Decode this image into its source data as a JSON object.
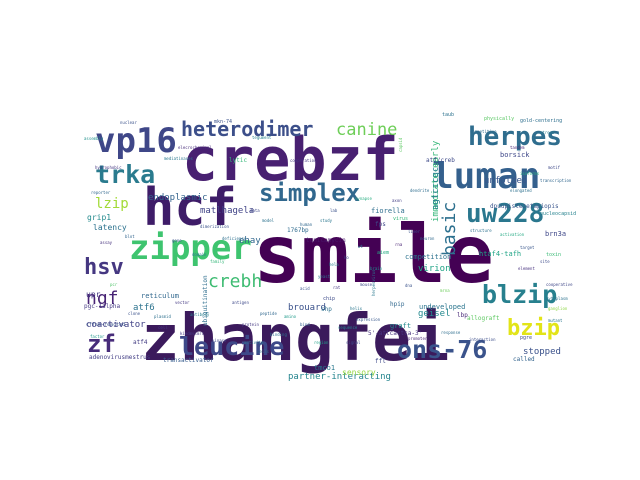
{
  "words": [
    {
      "text": "smile",
      "color": "#440154"
    },
    {
      "text": "zhangfei",
      "color": "#3b1a5c"
    },
    {
      "text": "crebzf",
      "color": "#482071"
    },
    {
      "text": "hcf",
      "color": "#3e1c68"
    },
    {
      "text": "luman",
      "color": "#34608d"
    },
    {
      "text": "zipper",
      "color": "#3ec46f"
    },
    {
      "text": "vp16",
      "color": "#3f4788"
    },
    {
      "text": "herpes",
      "color": "#2f6d8e"
    },
    {
      "text": "simplex",
      "color": "#31688e"
    },
    {
      "text": "uw228",
      "color": "#2a778e"
    },
    {
      "text": "trka",
      "color": "#2a7b8e"
    },
    {
      "text": "heterodimer",
      "color": "#3c4f8a"
    },
    {
      "text": "canine",
      "color": "#6ece58"
    },
    {
      "text": "leucine",
      "color": "#3e4989"
    },
    {
      "text": "ons-76",
      "color": "#3a538b"
    },
    {
      "text": "blzip",
      "color": "#27808e"
    },
    {
      "text": "bzip",
      "color": "#e2e418"
    },
    {
      "text": "hsv",
      "color": "#453781"
    },
    {
      "text": "zf",
      "color": "#472c7a"
    },
    {
      "text": "ngf",
      "color": "#482475"
    },
    {
      "text": "lzip",
      "color": "#a2da37"
    },
    {
      "text": "crebh",
      "color": "#3fbc73"
    },
    {
      "text": "basic",
      "color": "#2d708e"
    },
    {
      "text": "endoplasmic",
      "color": "#33638d"
    },
    {
      "text": "matlhagela",
      "color": "#414487"
    },
    {
      "text": "stopped",
      "color": "#3b528b"
    },
    {
      "text": "coactivator",
      "color": "#414287"
    },
    {
      "text": "partner-interacting",
      "color": "#25858e"
    },
    {
      "text": "geisel",
      "color": "#23898e"
    },
    {
      "text": "virion",
      "color": "#20a386"
    },
    {
      "text": "unfolded",
      "color": "#39568c"
    },
    {
      "text": "immediate-early",
      "color": "#35b779"
    },
    {
      "text": "agtcccgc",
      "color": "#26818e"
    },
    {
      "text": "brouard",
      "color": "#3b528b"
    },
    {
      "text": "atf6",
      "color": "#2c738e"
    },
    {
      "text": "ehay",
      "color": "#31678e"
    },
    {
      "text": "reticulum",
      "color": "#31688e"
    },
    {
      "text": "grip1",
      "color": "#238a8d"
    },
    {
      "text": "latency",
      "color": "#2c728e"
    },
    {
      "text": "upr",
      "color": "#453882"
    },
    {
      "text": "sensory",
      "color": "#93d741"
    },
    {
      "text": "borsick",
      "color": "#3f4889"
    },
    {
      "text": "undeveloped",
      "color": "#2b758e"
    },
    {
      "text": "competition",
      "color": "#2c728e"
    },
    {
      "text": "ubiquitination",
      "color": "#2e6e8e"
    },
    {
      "text": "transactivator",
      "color": "#365c8d"
    },
    {
      "text": "adenovirusmestrus",
      "color": "#433e85"
    },
    {
      "text": "fiorella",
      "color": "#2e6e8e"
    },
    {
      "text": "tunicamycin",
      "color": "#48186a"
    },
    {
      "text": "lytic",
      "color": "#35b779"
    },
    {
      "text": "fps",
      "color": "#3f4788"
    },
    {
      "text": "allograft",
      "color": "#5ec962"
    },
    {
      "text": "graft",
      "color": "#238a8d"
    },
    {
      "text": "lbp",
      "color": "#482878"
    },
    {
      "text": "called",
      "color": "#33638d"
    },
    {
      "text": "ffl",
      "color": "#3e4989"
    },
    {
      "text": "pgre",
      "color": "#3e4989"
    },
    {
      "text": "brn3a",
      "color": "#3f4889"
    },
    {
      "text": "htaf4-tafh",
      "color": "#20a486"
    },
    {
      "text": "tmco1",
      "color": "#2a788e"
    },
    {
      "text": "hpip",
      "color": "#31688e"
    },
    {
      "text": "shp",
      "color": "#2d708e"
    },
    {
      "text": "atf4",
      "color": "#433d84"
    },
    {
      "text": "chip",
      "color": "#3e4c8a"
    },
    {
      "text": "5'-attcactca-3'",
      "color": "#46337e"
    },
    {
      "text": "dpuupistezetapiopis",
      "color": "#39558c"
    },
    {
      "text": "nucleocapsid",
      "color": "#26828e"
    },
    {
      "text": "pgc-1alpha",
      "color": "#443983"
    },
    {
      "text": "1767bp",
      "color": "#2f6b8e"
    },
    {
      "text": "mkn-74",
      "color": "#3b528b"
    },
    {
      "text": "taub",
      "color": "#2c728e"
    },
    {
      "text": "atf/creb",
      "color": "#3e4a89"
    },
    {
      "text": "toxin",
      "color": "#3aba76"
    },
    {
      "text": "elecrochemical",
      "color": "#472c7a"
    },
    {
      "text": "physically",
      "color": "#5ac864"
    },
    {
      "text": "gold-centering",
      "color": "#2e6f8e"
    },
    {
      "text": "competitive",
      "color": "#2f6c8e"
    },
    {
      "text": "tandem",
      "color": "#482475"
    },
    {
      "text": "aiem",
      "color": "#25ac82"
    },
    {
      "text": "herpesvirus",
      "color": "#2a788e"
    },
    {
      "text": "cffsm-reacted",
      "color": "#3b528b"
    },
    {
      "text": "kiedmvsmrc",
      "color": "#443a83"
    },
    {
      "text": "mediatinases",
      "color": "#2a788e"
    },
    {
      "text": "virus",
      "color": "#35b779"
    },
    {
      "text": "elongated",
      "color": "#2d708e"
    },
    {
      "text": "hydrophobic",
      "color": "#453882"
    },
    {
      "text": "dimerization",
      "color": "#3b528b"
    },
    {
      "text": "isoforms",
      "color": "#29af7f"
    },
    {
      "text": "capsid",
      "color": "#5dc963"
    },
    {
      "text": "tegument",
      "color": "#26828e"
    },
    {
      "text": "deficiency",
      "color": "#2d708e"
    },
    {
      "text": "cooperative",
      "color": "#3f4788"
    },
    {
      "text": "assembly",
      "color": "#21918c"
    },
    {
      "text": "nuclear",
      "color": "#3b528b"
    },
    {
      "text": "cytoplasm",
      "color": "#2c728e"
    },
    {
      "text": "cooperation",
      "color": "#453781"
    },
    {
      "text": "ganglion",
      "color": "#8ed645"
    },
    {
      "text": "reporter",
      "color": "#31688e"
    },
    {
      "text": "mutant",
      "color": "#2a788e"
    },
    {
      "text": "stress",
      "color": "#287c8e"
    },
    {
      "text": "motif",
      "color": "#3e4989"
    },
    {
      "text": "element",
      "color": "#46307e"
    },
    {
      "text": "bind",
      "color": "#33638d"
    },
    {
      "text": "region",
      "color": "#1fa187"
    },
    {
      "text": "signal",
      "color": "#3f4788"
    },
    {
      "text": "cells",
      "color": "#2d708e"
    },
    {
      "text": "protein",
      "color": "#453882"
    },
    {
      "text": "factor",
      "color": "#1f968b"
    },
    {
      "text": "human",
      "color": "#31688e"
    },
    {
      "text": "gene",
      "color": "#3b528b"
    },
    {
      "text": "domain",
      "color": "#2a788e"
    },
    {
      "text": "family",
      "color": "#34b679"
    },
    {
      "text": "cell",
      "color": "#443a83"
    },
    {
      "text": "kinase",
      "color": "#3f4889"
    },
    {
      "text": "binding",
      "color": "#2c728e"
    },
    {
      "text": "activity",
      "color": "#2a788e"
    },
    {
      "text": "expression",
      "color": "#38588c"
    },
    {
      "text": "sequence",
      "color": "#25848e"
    },
    {
      "text": "promoter",
      "color": "#482576"
    },
    {
      "text": "response",
      "color": "#2e6e8e"
    },
    {
      "text": "interaction",
      "color": "#3d4e8a"
    },
    {
      "text": "transcription",
      "color": "#31678e"
    },
    {
      "text": "activation",
      "color": "#23a983"
    },
    {
      "text": "target",
      "color": "#39568c"
    },
    {
      "text": "site",
      "color": "#3e4c8a"
    },
    {
      "text": "structure",
      "color": "#2c718e"
    },
    {
      "text": "mrna",
      "color": "#6ccd5a"
    },
    {
      "text": "dna",
      "color": "#3b528b"
    },
    {
      "text": "rna",
      "color": "#482173"
    },
    {
      "text": "wt",
      "color": "#2d708e"
    },
    {
      "text": "ko",
      "color": "#3f4788"
    },
    {
      "text": "hela",
      "color": "#26818e"
    },
    {
      "text": "yeast",
      "color": "#2b758e"
    },
    {
      "text": "mouse",
      "color": "#3e4a89"
    },
    {
      "text": "rat",
      "color": "#453581"
    },
    {
      "text": "brain",
      "color": "#20928c"
    },
    {
      "text": "liver",
      "color": "#3a548c"
    },
    {
      "text": "neuron",
      "color": "#306a8e"
    },
    {
      "text": "axon",
      "color": "#433e85"
    },
    {
      "text": "dendrite",
      "color": "#2e6d8e"
    },
    {
      "text": "synapse",
      "color": "#27ad81"
    },
    {
      "text": "lab",
      "color": "#3b528b"
    },
    {
      "text": "study",
      "color": "#2a778e"
    },
    {
      "text": "data",
      "color": "#3f4889"
    },
    {
      "text": "model",
      "color": "#2c728e"
    },
    {
      "text": "assay",
      "color": "#46327e"
    },
    {
      "text": "blot",
      "color": "#32658e"
    },
    {
      "text": "pcr",
      "color": "#50c46a"
    },
    {
      "text": "clone",
      "color": "#3b528b"
    },
    {
      "text": "plasmid",
      "color": "#2d708e"
    },
    {
      "text": "vector",
      "color": "#443983"
    },
    {
      "text": "antibody",
      "color": "#287d8e"
    },
    {
      "text": "antigen",
      "color": "#3e4989"
    },
    {
      "text": "peptide",
      "color": "#31688e"
    },
    {
      "text": "amino",
      "color": "#1f9a8a"
    },
    {
      "text": "acid",
      "color": "#3a538b"
    },
    {
      "text": "helix",
      "color": "#2a768e"
    }
  ]
}
